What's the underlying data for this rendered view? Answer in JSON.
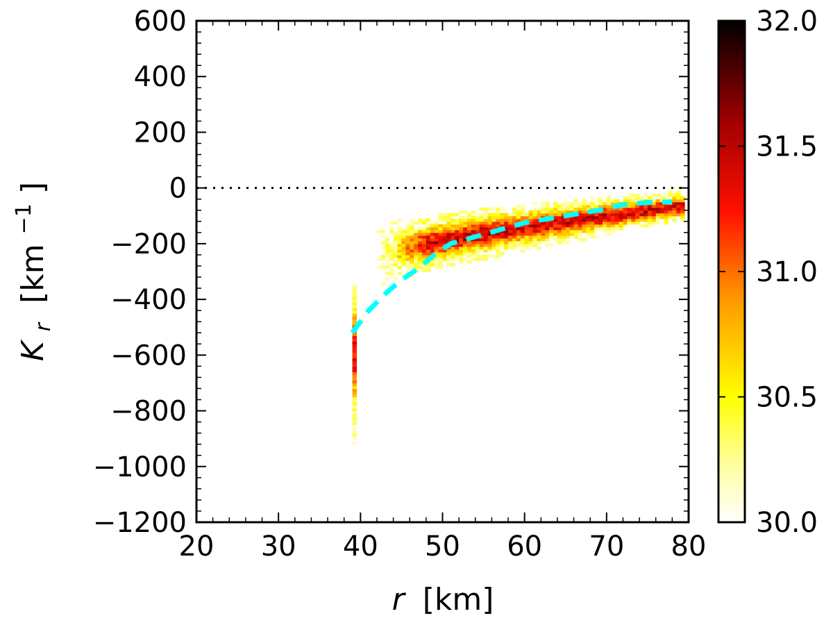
{
  "chart_data": {
    "type": "heatmap",
    "title": "",
    "xlabel": {
      "var": "r",
      "unit": "[km]"
    },
    "ylabel": {
      "var": "K",
      "sub": "r",
      "unit_pre": "[km",
      "unit_exp": "−1",
      "unit_post": "]"
    },
    "xlim": [
      20,
      80
    ],
    "ylim": [
      -1200,
      600
    ],
    "x_ticks": [
      20,
      30,
      40,
      50,
      60,
      70,
      80
    ],
    "x_tick_labels": [
      "20",
      "30",
      "40",
      "50",
      "60",
      "70",
      "80"
    ],
    "y_ticks": [
      600,
      400,
      200,
      0,
      -200,
      -400,
      -600,
      -800,
      -1000,
      -1200
    ],
    "y_tick_labels": [
      "600",
      "400",
      "200",
      "0",
      "−200",
      "−400",
      "−600",
      "−800",
      "−1000",
      "−1200"
    ],
    "colorbar": {
      "range": [
        30.0,
        32.0
      ],
      "ticks": [
        30.0,
        30.5,
        31.0,
        31.5,
        32.0
      ],
      "tick_labels": [
        "30.0",
        "30.5",
        "31.0",
        "31.5",
        "32.0"
      ],
      "colormap": "hot_r"
    },
    "reference_line": {
      "y": 0,
      "style": "dotted",
      "color": "#000000"
    },
    "fit_curve": {
      "style": "dashed",
      "color": "#00ffff",
      "x": [
        39,
        41,
        43,
        45,
        47,
        49,
        51,
        54,
        57,
        60,
        63,
        66,
        69,
        72,
        75,
        78
      ],
      "y": [
        -520,
        -440,
        -380,
        -330,
        -290,
        -240,
        -200,
        -175,
        -150,
        -125,
        -110,
        -95,
        -80,
        -60,
        -52,
        -50
      ]
    },
    "density_bands": [
      {
        "name": "inner-spike",
        "x_center": 39,
        "x_halfwidth": 0.4,
        "y_top": -400,
        "y_bottom": -920,
        "peak_y": -600,
        "peak_value": 31.3
      },
      {
        "name": "main-band",
        "x_start": 42,
        "x_end": 79,
        "y_start": -250,
        "y_end": -70,
        "y_spread_start": 70,
        "y_spread_end": 35,
        "peak_value": 31.4
      }
    ]
  }
}
